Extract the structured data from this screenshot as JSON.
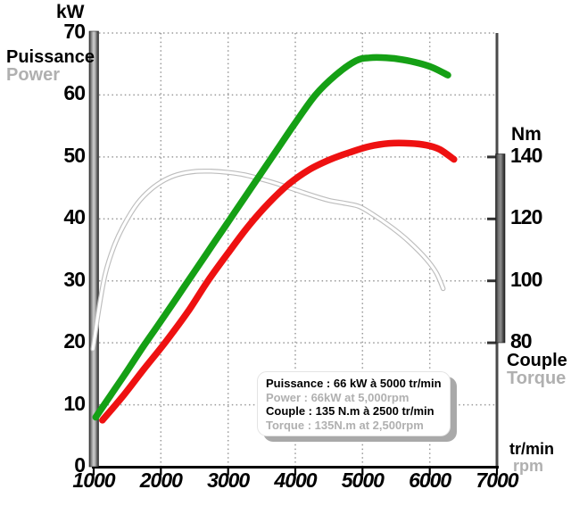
{
  "labels": {
    "left_unit": "kW",
    "left_title_fr": "Puissance",
    "left_title_en": "Power",
    "right_unit": "Nm",
    "right_title_fr": "Couple",
    "right_title_en": "Torque",
    "x_unit_fr": "tr/min",
    "x_unit_en": "rpm"
  },
  "legend": {
    "puissance_fr": "Puissance : 66 kW à 5000 tr/min",
    "power_en": "Power : 66kW at 5,000rpm",
    "couple_fr": "Couple : 135 N.m à 2500 tr/min",
    "torque_en": "Torque : 135N.m at 2,500rpm"
  },
  "axes": {
    "x_ticks": [
      1000,
      2000,
      3000,
      4000,
      5000,
      6000,
      7000
    ],
    "left_ticks": [
      0,
      10,
      20,
      30,
      40,
      50,
      60,
      70
    ],
    "right_ticks": [
      140,
      120,
      100,
      80
    ]
  },
  "colors": {
    "power_green": "#15a015",
    "red_curve": "#ee1111",
    "torque_white": "#ffffff",
    "torque_outline": "#bdbdbd",
    "grid": "#999999",
    "gray_text": "#b0b0b0",
    "axis_black": "#000000",
    "right_border": "#4a4a4a"
  },
  "chart_data": {
    "type": "line",
    "x_label": "tr/min (rpm)",
    "x_range": [
      1000,
      7000
    ],
    "grid": "dotted",
    "left_axis": {
      "unit": "kW",
      "range": [
        0,
        70
      ]
    },
    "right_axis": {
      "unit": "Nm",
      "ticks_shown": [
        80,
        100,
        120,
        140
      ],
      "alignment": "140 Nm aligns with 50 kW; 20 Nm per 10 kW"
    },
    "series": [
      {
        "name": "puissance-power",
        "unit": "kW",
        "axis": "left",
        "color": "#15a015",
        "width": 7.5,
        "peak_label": "66 kW à 5000 tr/min",
        "points": [
          [
            1030,
            8
          ],
          [
            1250,
            11.5
          ],
          [
            1500,
            15.5
          ],
          [
            1750,
            19.6
          ],
          [
            2000,
            23.5
          ],
          [
            2250,
            27.5
          ],
          [
            2500,
            31.5
          ],
          [
            2750,
            35.5
          ],
          [
            3000,
            39.5
          ],
          [
            3250,
            43.5
          ],
          [
            3500,
            47.5
          ],
          [
            3750,
            51.5
          ],
          [
            4000,
            55.5
          ],
          [
            4300,
            60
          ],
          [
            4600,
            63.2
          ],
          [
            4900,
            65.5
          ],
          [
            5100,
            66
          ],
          [
            5350,
            66
          ],
          [
            5600,
            65.7
          ],
          [
            5850,
            65.1
          ],
          [
            6050,
            64.4
          ],
          [
            6270,
            63.2
          ]
        ]
      },
      {
        "name": "red-curve",
        "unit": "kW",
        "axis": "left",
        "color": "#ee1111",
        "width": 7.5,
        "points": [
          [
            1130,
            7.5
          ],
          [
            1450,
            11.6
          ],
          [
            1750,
            15.8
          ],
          [
            2060,
            20
          ],
          [
            2400,
            25
          ],
          [
            2700,
            30
          ],
          [
            3000,
            34.5
          ],
          [
            3300,
            38.8
          ],
          [
            3600,
            42.5
          ],
          [
            3900,
            45.6
          ],
          [
            4200,
            47.9
          ],
          [
            4500,
            49.5
          ],
          [
            4800,
            50.7
          ],
          [
            5100,
            51.7
          ],
          [
            5400,
            52.2
          ],
          [
            5700,
            52.2
          ],
          [
            5950,
            51.9
          ],
          [
            6150,
            51.2
          ],
          [
            6360,
            49.6
          ]
        ]
      },
      {
        "name": "couple-torque",
        "unit": "N.m",
        "axis": "right",
        "color": "#ffffff",
        "outline": "#bdbdbd",
        "width": 3.2,
        "outline_width": 5.5,
        "peak_label": "135 N.m à 2500 tr/min",
        "points": [
          [
            990,
            78
          ],
          [
            1070,
            90
          ],
          [
            1170,
            102
          ],
          [
            1300,
            111
          ],
          [
            1450,
            118
          ],
          [
            1650,
            125
          ],
          [
            1850,
            129.5
          ],
          [
            2050,
            132.5
          ],
          [
            2250,
            134.3
          ],
          [
            2500,
            135.3
          ],
          [
            2750,
            135.4
          ],
          [
            3000,
            135
          ],
          [
            3250,
            134.2
          ],
          [
            3500,
            132.8
          ],
          [
            3750,
            131.2
          ],
          [
            4000,
            129.4
          ],
          [
            4250,
            127.6
          ],
          [
            4500,
            126
          ],
          [
            4750,
            125
          ],
          [
            4950,
            124
          ],
          [
            5150,
            121.5
          ],
          [
            5450,
            117
          ],
          [
            5700,
            112.5
          ],
          [
            5950,
            107
          ],
          [
            6100,
            102.5
          ],
          [
            6200,
            97.5
          ]
        ]
      }
    ]
  }
}
